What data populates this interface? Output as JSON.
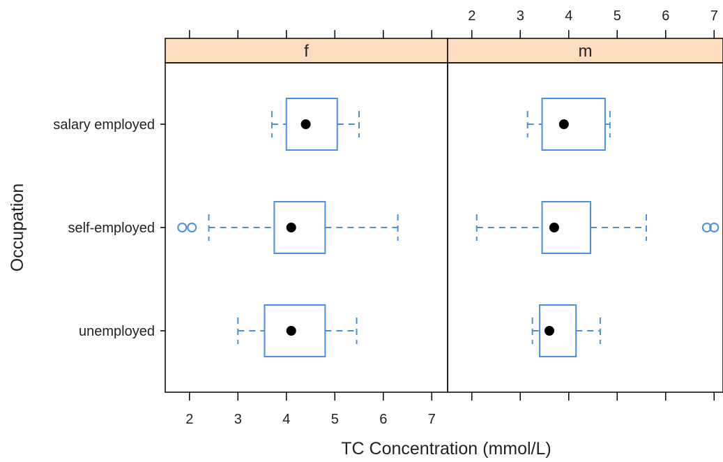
{
  "chart_data": {
    "type": "boxplot",
    "title": "",
    "xlabel": "TC Concentration (mmol/L)",
    "ylabel": "Occupation",
    "xlim": [
      1.5,
      7.3
    ],
    "x_ticks": [
      2,
      3,
      4,
      5,
      6,
      7
    ],
    "categories": [
      "salary employed",
      "self-employed",
      "unemployed"
    ],
    "colors": {
      "strip": "#fddcbf",
      "box": "#4a90e2",
      "median": "#000000",
      "frame": "#000000"
    },
    "panels": [
      {
        "label": "f",
        "boxes": [
          {
            "category": "salary employed",
            "lower_whisker": 3.7,
            "q1": 4.0,
            "median": 4.4,
            "q3": 5.05,
            "upper_whisker": 5.5,
            "outliers": []
          },
          {
            "category": "self-employed",
            "lower_whisker": 2.4,
            "q1": 3.75,
            "median": 4.1,
            "q3": 4.8,
            "upper_whisker": 6.3,
            "outliers": [
              1.85,
              2.05
            ]
          },
          {
            "category": "unemployed",
            "lower_whisker": 3.0,
            "q1": 3.55,
            "median": 4.1,
            "q3": 4.8,
            "upper_whisker": 5.45,
            "outliers": []
          }
        ]
      },
      {
        "label": "m",
        "boxes": [
          {
            "category": "salary employed",
            "lower_whisker": 3.15,
            "q1": 3.45,
            "median": 3.9,
            "q3": 4.75,
            "upper_whisker": 4.85,
            "outliers": []
          },
          {
            "category": "self-employed",
            "lower_whisker": 2.1,
            "q1": 3.45,
            "median": 3.7,
            "q3": 4.45,
            "upper_whisker": 5.6,
            "outliers": [
              6.85,
              7.0
            ]
          },
          {
            "category": "unemployed",
            "lower_whisker": 3.25,
            "q1": 3.4,
            "median": 3.6,
            "q3": 4.15,
            "upper_whisker": 4.65,
            "outliers": []
          }
        ]
      }
    ]
  }
}
